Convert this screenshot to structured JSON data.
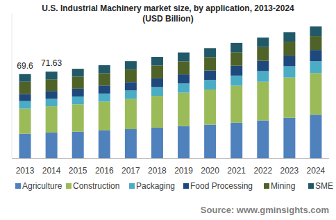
{
  "chart_data": {
    "type": "bar",
    "stacked": true,
    "title": "U.S. Industrial Machinery market size, by application, 2013-2024",
    "subtitle": "(USD Billion)",
    "source": "Source: www.gminsights.com",
    "categories": [
      "2013",
      "2014",
      "2015",
      "2016",
      "2017",
      "2018",
      "2019",
      "2020",
      "2021",
      "2022",
      "2023",
      "2024"
    ],
    "series": [
      {
        "name": "Agriculture",
        "color": "#4f81bd",
        "values": [
          20.2,
          21.2,
          22.0,
          23.0,
          24.1,
          25.3,
          26.5,
          27.8,
          29.4,
          31.3,
          33.5,
          36.0
        ]
      },
      {
        "name": "Construction",
        "color": "#9bbb59",
        "values": [
          20.8,
          21.8,
          22.6,
          23.8,
          25.0,
          26.3,
          27.7,
          29.0,
          30.6,
          32.0,
          33.3,
          34.5
        ]
      },
      {
        "name": "Packaging",
        "color": "#4bacc6",
        "values": [
          6.3,
          6.3,
          6.5,
          6.7,
          7.0,
          7.3,
          7.7,
          8.0,
          8.4,
          8.8,
          9.3,
          9.8
        ]
      },
      {
        "name": "Food Processing",
        "color": "#1f497d",
        "values": [
          5.8,
          6.3,
          6.4,
          6.6,
          6.9,
          7.2,
          7.5,
          7.8,
          8.1,
          8.5,
          8.8,
          9.2
        ]
      },
      {
        "name": "Mining",
        "color": "#4f6228",
        "values": [
          10.2,
          9.73,
          10.0,
          10.2,
          10.4,
          10.6,
          10.8,
          11.0,
          11.2,
          11.4,
          11.5,
          11.5
        ]
      },
      {
        "name": "SME",
        "color": "#215968",
        "values": [
          6.3,
          6.3,
          6.5,
          6.7,
          6.9,
          7.1,
          7.3,
          7.5,
          7.7,
          7.8,
          7.9,
          8.0
        ]
      }
    ],
    "annotations": [
      {
        "x": "2013",
        "y": 69.6,
        "text": "69.6"
      },
      {
        "x": "2014",
        "y": 71.63,
        "text": "71.63"
      }
    ],
    "ylim": [
      0,
      120
    ],
    "tick_labels": "x",
    "grid": false,
    "legend": "bottom"
  }
}
